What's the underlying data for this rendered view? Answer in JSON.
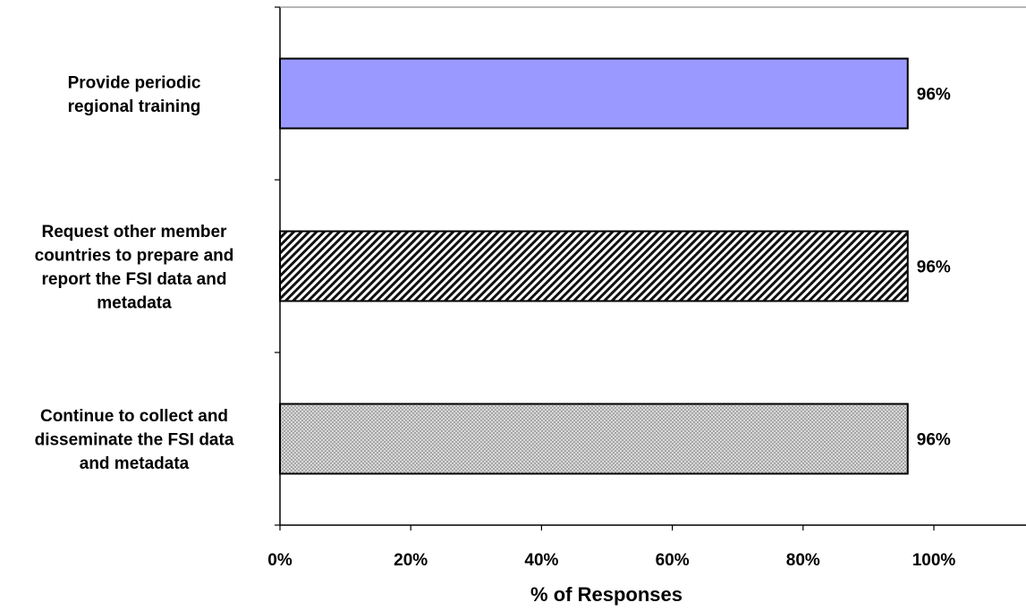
{
  "chart_data": {
    "type": "bar",
    "orientation": "horizontal",
    "categories": [
      "Provide periodic regional training",
      "Request other member countries to prepare and report the FSI data and metadata",
      "Continue to collect and disseminate the FSI data and metadata"
    ],
    "category_label_lines": [
      [
        "Provide periodic",
        "regional training"
      ],
      [
        "Request other member",
        "countries to prepare and",
        "report the FSI data and",
        "metadata"
      ],
      [
        "Continue to collect and",
        "disseminate the FSI data",
        "and metadata"
      ]
    ],
    "values": [
      96,
      96,
      96
    ],
    "data_labels": [
      "96%",
      "96%",
      "96%"
    ],
    "patterns": [
      "solid",
      "diagonal-hatch",
      "crosshatch"
    ],
    "colors": [
      "#9999ff",
      "#000000",
      "#c0c0c0"
    ],
    "xlabel": "% of Responses",
    "ylabel": "",
    "title": "",
    "xlim": [
      0,
      100
    ],
    "xticks": [
      0,
      20,
      40,
      60,
      80,
      100
    ],
    "xtick_labels": [
      "0%",
      "20%",
      "40%",
      "60%",
      "80%",
      "100%"
    ],
    "grid": false,
    "legend": "none"
  }
}
